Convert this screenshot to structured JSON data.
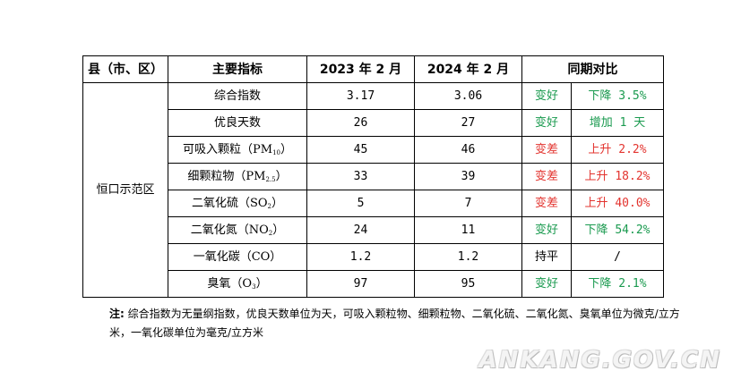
{
  "headers": [
    "县（市、区）",
    "主要指标",
    "2023 年 2 月",
    "2024 年 2 月",
    "同期对比"
  ],
  "county": "恒口示范区",
  "rows": [
    {
      "name": "综合指数",
      "sub": "",
      "suffix": "",
      "v2023": "3.17",
      "v2024": "3.06",
      "status": "变好",
      "change": "下降 3.5%",
      "tone": "good"
    },
    {
      "name": "优良天数",
      "sub": "",
      "suffix": "",
      "v2023": "26",
      "v2024": "27",
      "status": "变好",
      "change": "增加 1 天",
      "tone": "good"
    },
    {
      "name": "可吸入颗粒（PM",
      "sub": "10",
      "suffix": "）",
      "v2023": "45",
      "v2024": "46",
      "status": "变差",
      "change": "上升 2.2%",
      "tone": "bad"
    },
    {
      "name": "细颗粒物（PM",
      "sub": "2.5",
      "suffix": "）",
      "v2023": "33",
      "v2024": "39",
      "status": "变差",
      "change": "上升 18.2%",
      "tone": "bad"
    },
    {
      "name": "二氧化硫（SO",
      "sub": "2",
      "suffix": "）",
      "v2023": "5",
      "v2024": "7",
      "status": "变差",
      "change": "上升 40.0%",
      "tone": "bad"
    },
    {
      "name": "二氧化氮（NO",
      "sub": "2",
      "suffix": "）",
      "v2023": "24",
      "v2024": "11",
      "status": "变好",
      "change": "下降 54.2%",
      "tone": "good"
    },
    {
      "name": "一氧化碳（CO）",
      "sub": "",
      "suffix": "",
      "v2023": "1.2",
      "v2024": "1.2",
      "status": "持平",
      "change": "/",
      "tone": "flat"
    },
    {
      "name": "臭氧（O",
      "sub": "3",
      "suffix": "）",
      "v2023": "97",
      "v2024": "95",
      "status": "变好",
      "change": "下降 2.1%",
      "tone": "good"
    }
  ],
  "note_label": "注:",
  "note_text": "综合指数为无量纲指数，优良天数单位为天，可吸入颗粒物、细颗粒物、二氧化硫、二氧化氮、臭氧单位为微克/立方米，一氧化碳单位为毫克/立方米",
  "watermark": "ANKANG.GOV.CN",
  "colors": {
    "good": "#1a9a4f",
    "bad": "#e3342f",
    "text": "#000000"
  }
}
